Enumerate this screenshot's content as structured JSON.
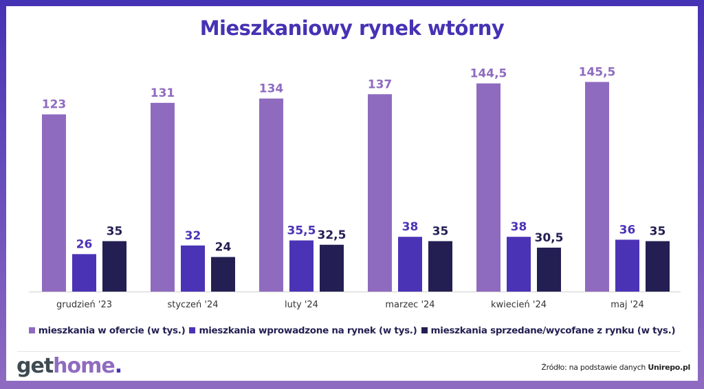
{
  "chart_data": {
    "type": "bar",
    "title": "Mieszkaniowy rynek wtórny",
    "categories": [
      "grudzień '23",
      "styczeń '24",
      "luty '24",
      "marzec '24",
      "kwiecień '24",
      "maj '24"
    ],
    "series": [
      {
        "name": "mieszkania w ofercie (w tys.)",
        "color": "#8f6bc0",
        "values": [
          123,
          131,
          134,
          137,
          144.5,
          145.5
        ],
        "labels": [
          "123",
          "131",
          "134",
          "137",
          "144,5",
          "145,5"
        ]
      },
      {
        "name": "mieszkania wprowadzone na rynek (w tys.)",
        "color": "#4b33b6",
        "values": [
          26,
          32,
          35.5,
          38,
          38,
          36
        ],
        "labels": [
          "26",
          "32",
          "35,5",
          "38",
          "38",
          "36"
        ]
      },
      {
        "name": "mieszkania sprzedane/wycofane z rynku (w tys.)",
        "color": "#231f52",
        "values": [
          35,
          24,
          32.5,
          35,
          30.5,
          35
        ],
        "labels": [
          "35",
          "24",
          "32,5",
          "35",
          "30,5",
          "35"
        ]
      }
    ],
    "xlabel": "",
    "ylabel": "",
    "ylim": [
      0,
      150
    ],
    "grid": false,
    "legend": "bottom"
  },
  "footer": {
    "logo": {
      "a": "get",
      "b": "home",
      "c": "."
    },
    "source_prefix": "Źródło: na podstawie danych ",
    "source_name": "Unirepo.pl"
  }
}
